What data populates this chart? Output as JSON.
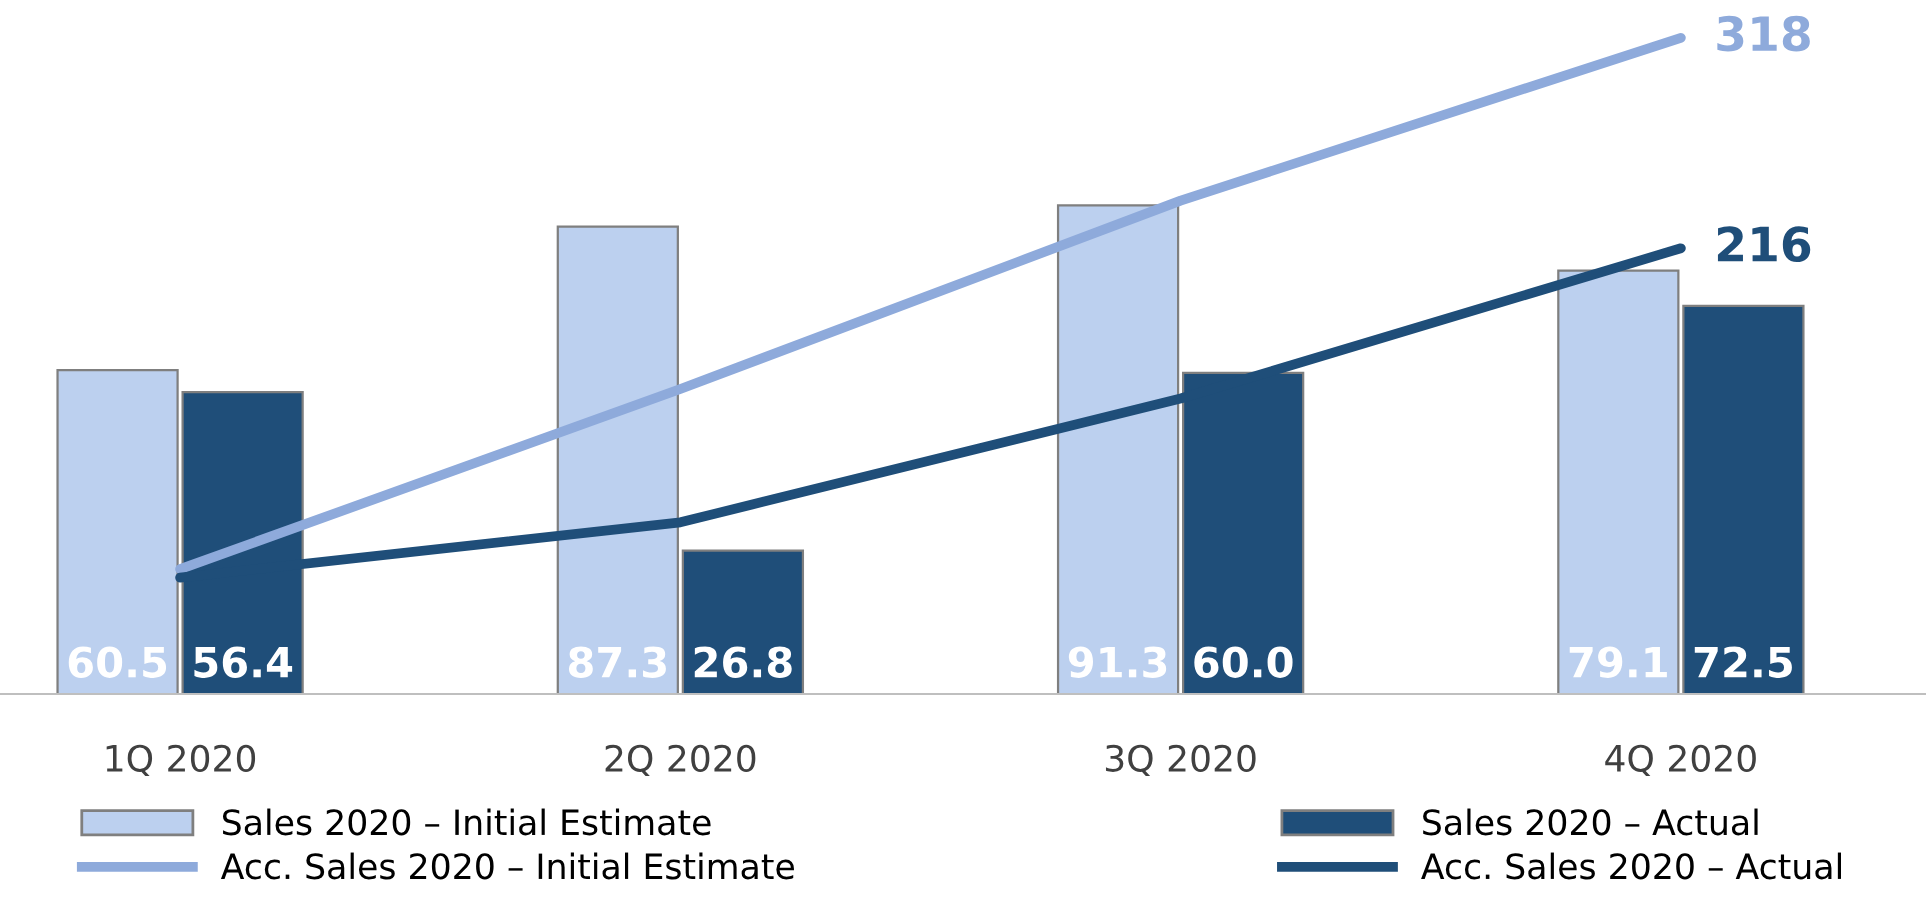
{
  "chart_data": {
    "type": "bar",
    "categories": [
      "1Q 2020",
      "2Q 2020",
      "3Q 2020",
      "4Q 2020"
    ],
    "series": [
      {
        "name": "Sales 2020 – Initial Estimate",
        "color": "#bcd0ef",
        "values": [
          60.5,
          87.3,
          91.3,
          79.1
        ],
        "value_labels": [
          "60.5",
          "87.3",
          "91.3",
          "79.1"
        ]
      },
      {
        "name": "Sales 2020 – Actual",
        "color": "#1f4e79",
        "values": [
          56.4,
          26.8,
          60.0,
          72.5
        ],
        "value_labels": [
          "56.4",
          "26.8",
          "60.0",
          "72.5"
        ]
      },
      {
        "name": "Acc. Sales 2020 – Initial Estimate",
        "type": "line",
        "axis": "y2",
        "color": "#8eaadb",
        "values": [
          60.5,
          147.8,
          239.1,
          318
        ],
        "value_labels": [
          null,
          null,
          null,
          "318"
        ]
      },
      {
        "name": "Acc. Sales 2020 – Actual",
        "type": "line",
        "axis": "y2",
        "color": "#1f4e79",
        "values": [
          56.4,
          83.2,
          143.2,
          216
        ],
        "value_labels": [
          null,
          null,
          null,
          "216"
        ]
      }
    ],
    "tick_labels": "x",
    "legend": "bottom",
    "grid": false,
    "marker": "none",
    "line_style": "solid"
  }
}
